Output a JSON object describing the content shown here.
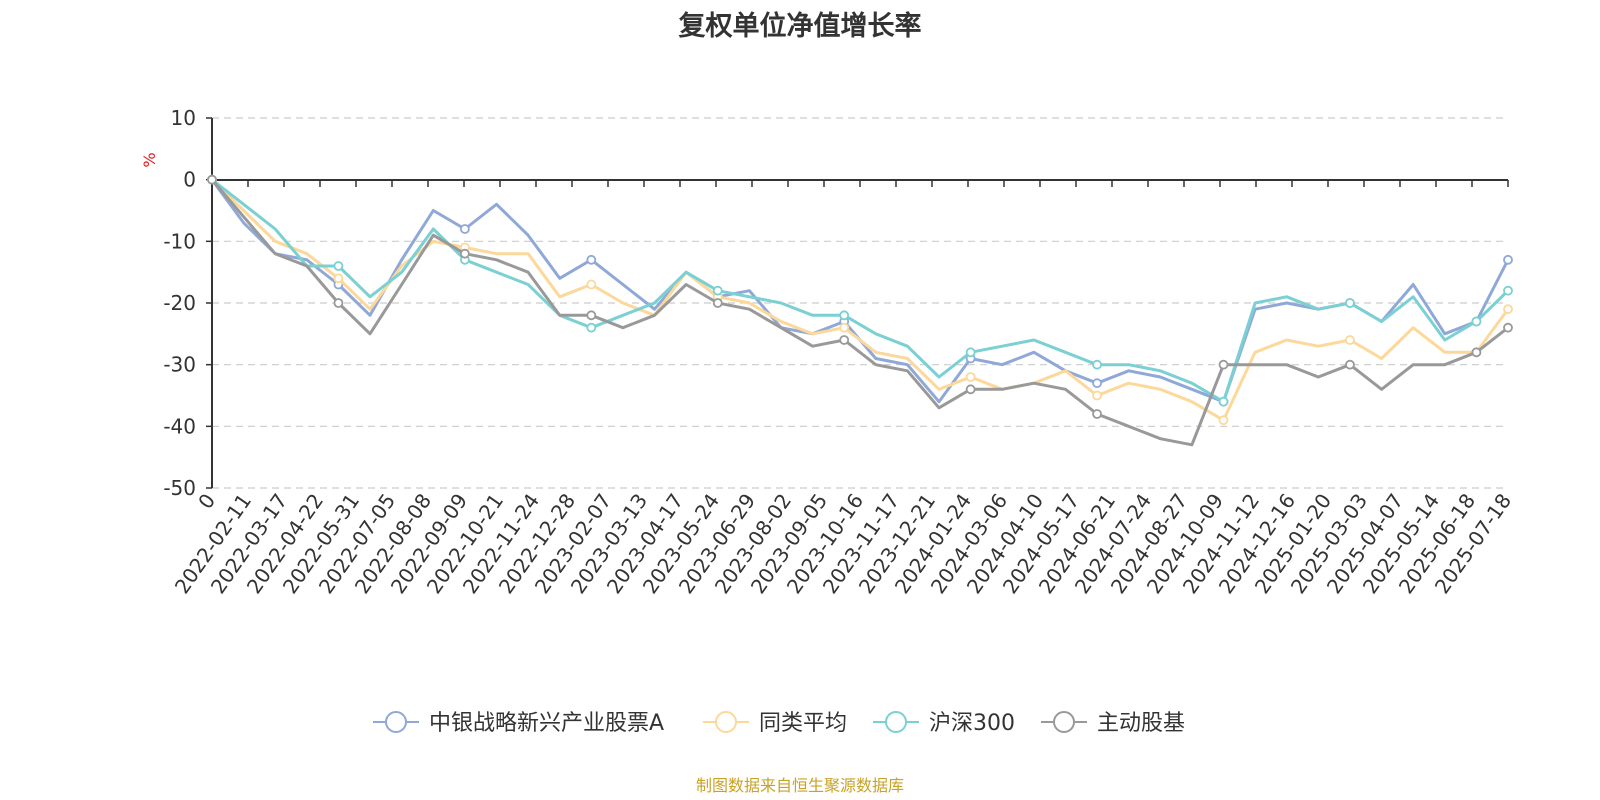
{
  "title": "复权单位净值增长率",
  "source": "制图数据来自恒生聚源数据库",
  "chart_data": {
    "type": "line",
    "ylabel": "%",
    "ylim": [
      -50,
      10
    ],
    "yticks": [
      10,
      0,
      -10,
      -20,
      -30,
      -40,
      -50
    ],
    "grid": true,
    "legend_position": "bottom-center",
    "x_ticks": [
      "0",
      "2022-02-11",
      "2022-03-17",
      "2022-04-22",
      "2022-05-31",
      "2022-07-05",
      "2022-08-08",
      "2022-09-09",
      "2022-10-21",
      "2022-11-24",
      "2022-12-28",
      "2023-02-07",
      "2023-03-13",
      "2023-04-17",
      "2023-05-24",
      "2023-06-29",
      "2023-08-02",
      "2023-09-05",
      "2023-10-16",
      "2023-11-17",
      "2023-12-21",
      "2024-01-24",
      "2024-03-06",
      "2024-04-10",
      "2024-05-17",
      "2024-06-21",
      "2024-07-24",
      "2024-08-27",
      "2024-10-09",
      "2024-11-12",
      "2024-12-16",
      "2025-01-20",
      "2025-03-03",
      "2025-04-07",
      "2025-05-14",
      "2025-06-18",
      "2025-07-18"
    ],
    "series": [
      {
        "name": "中银战略新兴产业股票A",
        "color": "#8fa8d8",
        "values": [
          0,
          -7,
          -12,
          -13,
          -17,
          -22,
          -13,
          -5,
          -8,
          -4,
          -9,
          -16,
          -13,
          -17,
          -21,
          -15,
          -19,
          -18,
          -24,
          -25,
          -23,
          -29,
          -30,
          -36,
          -29,
          -30,
          -28,
          -31,
          -33,
          -31,
          -32,
          -34,
          -36,
          -21,
          -20,
          -21,
          -20,
          -23,
          -17,
          -25,
          -23,
          -13
        ]
      },
      {
        "name": "同类平均",
        "color": "#fcd89a",
        "values": [
          0,
          -5,
          -10,
          -12,
          -16,
          -21,
          -14,
          -10,
          -11,
          -12,
          -12,
          -19,
          -17,
          -20,
          -22,
          -15,
          -19,
          -20,
          -23,
          -25,
          -24,
          -28,
          -29,
          -34,
          -32,
          -34,
          -33,
          -31,
          -35,
          -33,
          -34,
          -36,
          -39,
          -28,
          -26,
          -27,
          -26,
          -29,
          -24,
          -28,
          -28,
          -21
        ]
      },
      {
        "name": "沪深300",
        "color": "#7ad0d2",
        "values": [
          0,
          -4,
          -8,
          -14,
          -14,
          -19,
          -15,
          -8,
          -13,
          -15,
          -17,
          -22,
          -24,
          -22,
          -20,
          -15,
          -18,
          -19,
          -20,
          -22,
          -22,
          -25,
          -27,
          -32,
          -28,
          -27,
          -26,
          -28,
          -30,
          -30,
          -31,
          -33,
          -36,
          -20,
          -19,
          -21,
          -20,
          -23,
          -19,
          -26,
          -23,
          -18
        ]
      },
      {
        "name": "主动股基",
        "color": "#999999",
        "values": [
          0,
          -6,
          -12,
          -14,
          -20,
          -25,
          -17,
          -9,
          -12,
          -13,
          -15,
          -22,
          -22,
          -24,
          -22,
          -17,
          -20,
          -21,
          -24,
          -27,
          -26,
          -30,
          -31,
          -37,
          -34,
          -34,
          -33,
          -34,
          -38,
          -40,
          -42,
          -43,
          -30,
          -30,
          -30,
          -32,
          -30,
          -34,
          -30,
          -30,
          -28,
          -24
        ]
      }
    ]
  }
}
